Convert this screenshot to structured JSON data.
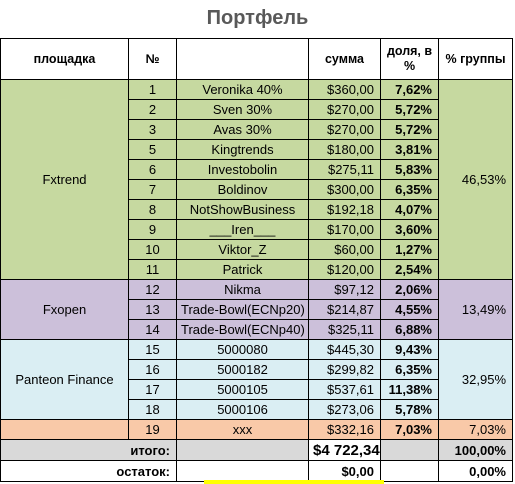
{
  "title": "Портфель",
  "header": {
    "platform": "площадка",
    "num": "№",
    "name": "",
    "sum": "сумма",
    "share": "доля, в %",
    "group_share": "% группы"
  },
  "groups": [
    {
      "name": "Fxtrend",
      "group_share": "46,53%",
      "rows": [
        {
          "num": "1",
          "name": "Veronika 40%",
          "sum": "$360,00",
          "share": "7,62%"
        },
        {
          "num": "2",
          "name": "Sven 30%",
          "sum": "$270,00",
          "share": "5,72%"
        },
        {
          "num": "3",
          "name": "Avas 30%",
          "sum": "$270,00",
          "share": "5,72%"
        },
        {
          "num": "5",
          "name": "Kingtrends",
          "sum": "$180,00",
          "share": "3,81%"
        },
        {
          "num": "6",
          "name": "Investobolin",
          "sum": "$275,11",
          "share": "5,83%"
        },
        {
          "num": "7",
          "name": "Boldinov",
          "sum": "$300,00",
          "share": "6,35%"
        },
        {
          "num": "8",
          "name": "NotShowBusiness",
          "sum": "$192,18",
          "share": "4,07%"
        },
        {
          "num": "9",
          "name": "___Iren___",
          "sum": "$170,00",
          "share": "3,60%"
        },
        {
          "num": "10",
          "name": "Viktor_Z",
          "sum": "$60,00",
          "share": "1,27%"
        },
        {
          "num": "11",
          "name": "Patrick",
          "sum": "$120,00",
          "share": "2,54%"
        }
      ]
    },
    {
      "name": "Fxopen",
      "group_share": "13,49%",
      "rows": [
        {
          "num": "12",
          "name": "Nikma",
          "sum": "$97,12",
          "share": "2,06%"
        },
        {
          "num": "13",
          "name": "Trade-Bowl(ECNp20)",
          "sum": "$214,87",
          "share": "4,55%"
        },
        {
          "num": "14",
          "name": "Trade-Bowl(ECNp40)",
          "sum": "$325,11",
          "share": "6,88%"
        }
      ]
    },
    {
      "name": "Panteon Finance",
      "group_share": "32,95%",
      "rows": [
        {
          "num": "15",
          "name": "5000080",
          "sum": "$445,30",
          "share": "9,43%"
        },
        {
          "num": "16",
          "name": "5000182",
          "sum": "$299,82",
          "share": "6,35%"
        },
        {
          "num": "17",
          "name": "5000105",
          "sum": "$537,61",
          "share": "11,38%"
        },
        {
          "num": "18",
          "name": "5000106",
          "sum": "$273,06",
          "share": "5,78%"
        }
      ]
    }
  ],
  "extra_row": {
    "num": "19",
    "name": "xxx",
    "sum": "$332,16",
    "share": "7,03%",
    "group_share": "7,03%"
  },
  "total": {
    "label": "итого:",
    "sum": "$4 722,34",
    "group_share": "100,00%"
  },
  "remainder": {
    "label": "остаток:",
    "sum": "$0,00",
    "group_share": "0,00%"
  },
  "colors": {
    "fxtrend": "#c6d9a0",
    "fxopen": "#ccc0da",
    "panteon": "#daeef3",
    "extra": "#f9c9a8",
    "total_row": "#d9d9d9",
    "highlight": "#ffff00"
  }
}
